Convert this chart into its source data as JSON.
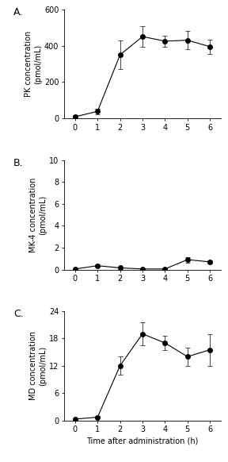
{
  "x": [
    0,
    1,
    2,
    3,
    4,
    5,
    6
  ],
  "pk_y": [
    10,
    40,
    350,
    450,
    425,
    430,
    395
  ],
  "pk_err": [
    8,
    15,
    80,
    55,
    30,
    50,
    40
  ],
  "pk_ylim": [
    0,
    600
  ],
  "pk_yticks": [
    0,
    200,
    400,
    600
  ],
  "pk_ylabel": "PK concentration\n(pmol/mL)",
  "mk4_y": [
    0.05,
    0.35,
    0.15,
    0.05,
    0.05,
    0.9,
    0.7
  ],
  "mk4_err": [
    0.05,
    0.1,
    0.08,
    0.05,
    0.05,
    0.25,
    0.12
  ],
  "mk4_ylim": [
    0,
    10
  ],
  "mk4_yticks": [
    0,
    2,
    4,
    6,
    8,
    10
  ],
  "mk4_ylabel": "MK-4 concentration\n(pmol/mL)",
  "md_y": [
    0.3,
    0.7,
    12.0,
    19.0,
    17.0,
    14.0,
    15.5
  ],
  "md_err": [
    0.2,
    0.3,
    2.0,
    2.5,
    1.5,
    2.0,
    3.5
  ],
  "md_ylim": [
    0,
    24
  ],
  "md_yticks": [
    0,
    6,
    12,
    18,
    24
  ],
  "md_ylabel": "MD concentration\n(pmol/mL)",
  "xlabel": "Time after administration (h)",
  "xticks": [
    0,
    1,
    2,
    3,
    4,
    5,
    6
  ],
  "xticklabels": [
    "0",
    "1",
    "2",
    "3",
    "4",
    "5",
    "6"
  ],
  "panel_labels": [
    "A.",
    "B.",
    "C."
  ],
  "line_color": "#444444",
  "marker_color": "black",
  "bg_color": "white",
  "fontsize_label": 7,
  "fontsize_tick": 7,
  "fontsize_panel": 9,
  "capsize": 2,
  "linewidth": 0.8,
  "markersize": 4
}
